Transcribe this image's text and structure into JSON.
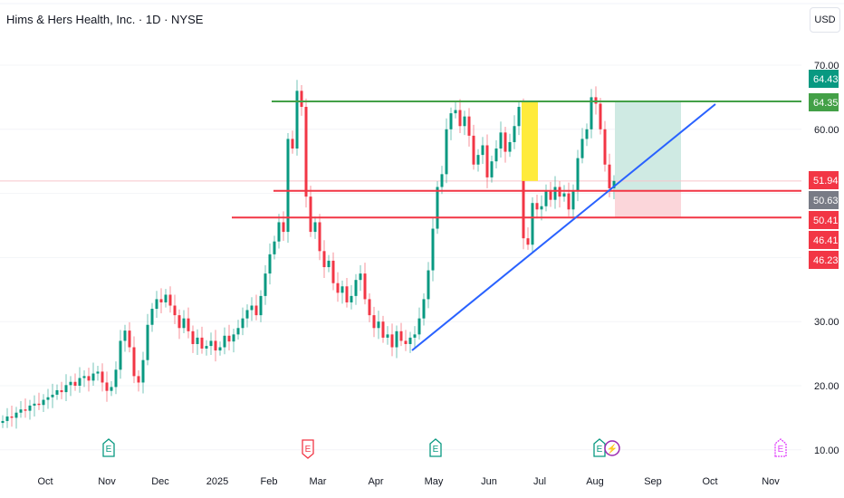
{
  "header": {
    "title": "Hims & Hers Health, Inc. · 1D · NYSE",
    "currency": "USD"
  },
  "colors": {
    "up": "#089981",
    "down": "#f23645",
    "support": "#f23645",
    "resistance": "#43a047",
    "trendline": "#2962ff",
    "highlight": "#ffeb3b",
    "target_zone": "#cfeae3",
    "stop_zone": "#fbd6da",
    "price_label_gray": "#787b86"
  },
  "chart_data": {
    "type": "candlestick",
    "title": "Hims & Hers Health, Inc. · 1D · NYSE",
    "y_ticks": [
      "70.00",
      "60.00",
      "30.00",
      "20.00",
      "10.00"
    ],
    "y_tick_values": [
      70,
      60,
      30,
      20,
      10
    ],
    "ylim": [
      7,
      78
    ],
    "x_ticks": [
      "Oct",
      "Nov",
      "Dec",
      "2025",
      "Feb",
      "Mar",
      "Apr",
      "May",
      "Jun",
      "Jul",
      "Aug",
      "Sep",
      "Oct",
      "Nov"
    ],
    "grid": true,
    "closes": [
      14.5,
      15.2,
      15.0,
      15.8,
      16.3,
      16.1,
      16.9,
      17.2,
      17.0,
      17.8,
      18.2,
      18.6,
      19.3,
      19.0,
      20.1,
      20.6,
      20.0,
      21.2,
      21.5,
      20.8,
      21.9,
      22.2,
      20.5,
      19.2,
      19.8,
      22.5,
      27.0,
      28.6,
      26.0,
      21.5,
      20.5,
      24.0,
      29.5,
      32.0,
      33.5,
      33.0,
      34.2,
      32.5,
      31.0,
      29.0,
      30.5,
      28.5,
      26.5,
      27.5,
      25.8,
      26.2,
      27.0,
      25.5,
      26.0,
      27.8,
      26.9,
      28.0,
      29.0,
      30.5,
      31.8,
      32.5,
      31.0,
      34.0,
      37.5,
      40.5,
      42.5,
      45.5,
      44.0,
      58.5,
      57.0,
      66.0,
      63.5,
      49.5,
      44.0,
      45.5,
      41.0,
      38.5,
      39.5,
      36.0,
      34.5,
      35.5,
      33.0,
      34.0,
      36.5,
      37.5,
      33.5,
      31.0,
      29.0,
      30.0,
      27.5,
      28.0,
      26.0,
      28.5,
      27.0,
      26.5,
      27.5,
      28.0,
      30.5,
      33.5,
      38.0,
      44.5,
      51.0,
      53.0,
      60.0,
      62.5,
      63.0,
      60.5,
      62.0,
      59.0,
      54.5,
      56.0,
      57.5,
      52.5,
      55.0,
      57.0,
      59.5,
      56.5,
      58.0,
      60.5,
      63.5,
      43.0,
      42.0,
      48.5,
      47.5,
      48.0,
      50.5,
      49.0,
      51.0,
      49.5,
      50.0,
      47.5,
      50.5,
      55.5,
      58.5,
      60.0,
      65.0,
      64.0,
      60.0,
      54.5,
      50.8,
      51.94
    ],
    "horizontal_levels": {
      "resistance": 64.35,
      "support_upper": 50.41,
      "support_lower": 46.23,
      "last_price": 51.94
    },
    "price_labels": [
      {
        "text": "64.43",
        "color": "#089981"
      },
      {
        "text": "64.35",
        "color": "#43a047"
      },
      {
        "text": "51.94",
        "color": "#f23645"
      },
      {
        "text": "50.63",
        "color": "#787b86"
      },
      {
        "text": "50.41",
        "color": "#f23645"
      },
      {
        "text": "46.41",
        "color": "#f23645"
      },
      {
        "text": "46.23",
        "color": "#f23645"
      }
    ],
    "events": [
      {
        "type": "earnings",
        "color": "#089981",
        "label": "E"
      },
      {
        "type": "earnings",
        "color": "#f23645",
        "label": "E"
      },
      {
        "type": "earnings",
        "color": "#089981",
        "label": "E"
      },
      {
        "type": "earnings",
        "color": "#089981",
        "label": "E"
      },
      {
        "type": "dividend-split",
        "color": "#9c27b0",
        "label": "⚡"
      },
      {
        "type": "earnings-upcoming",
        "color": "#e040fb",
        "label": "E"
      }
    ]
  }
}
